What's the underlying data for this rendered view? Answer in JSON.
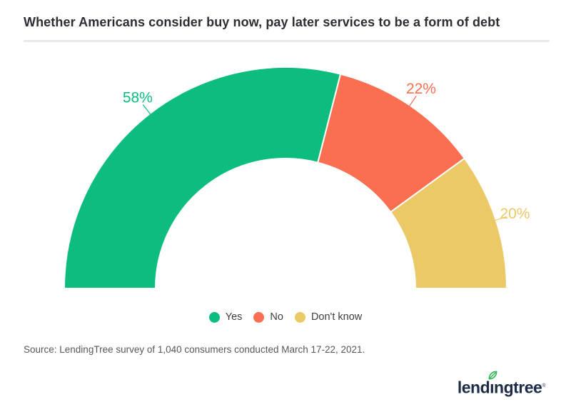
{
  "header": {
    "title": "Whether Americans consider buy now, pay later services to be a form of debt"
  },
  "chart_data": {
    "type": "pie",
    "subtype": "half-donut",
    "title": "Whether Americans consider buy now, pay later services to be a form of debt",
    "categories": [
      "Yes",
      "No",
      "Don't know"
    ],
    "values": [
      58,
      22,
      20
    ],
    "value_labels": [
      "58%",
      "22%",
      "20%"
    ],
    "colors": [
      "#0dbd7d",
      "#fa6e51",
      "#ecc967"
    ],
    "unit": "%",
    "total": 100,
    "start_angle_deg": 180,
    "end_angle_deg": 0,
    "legend_position": "bottom",
    "legend_labels": [
      "Yes",
      "No",
      "Don't know"
    ]
  },
  "footer": {
    "source": "Source: LendingTree survey of 1,040 consumers conducted March 17-22, 2021.",
    "logo": {
      "name": "lendingtree",
      "part_before_leaf": "lend",
      "leaf_letter": "ı",
      "part_after_leaf": "ngtree",
      "registered_mark": "®",
      "brand_navy": "#1d2b47",
      "leaf_green": "#33b558"
    }
  }
}
